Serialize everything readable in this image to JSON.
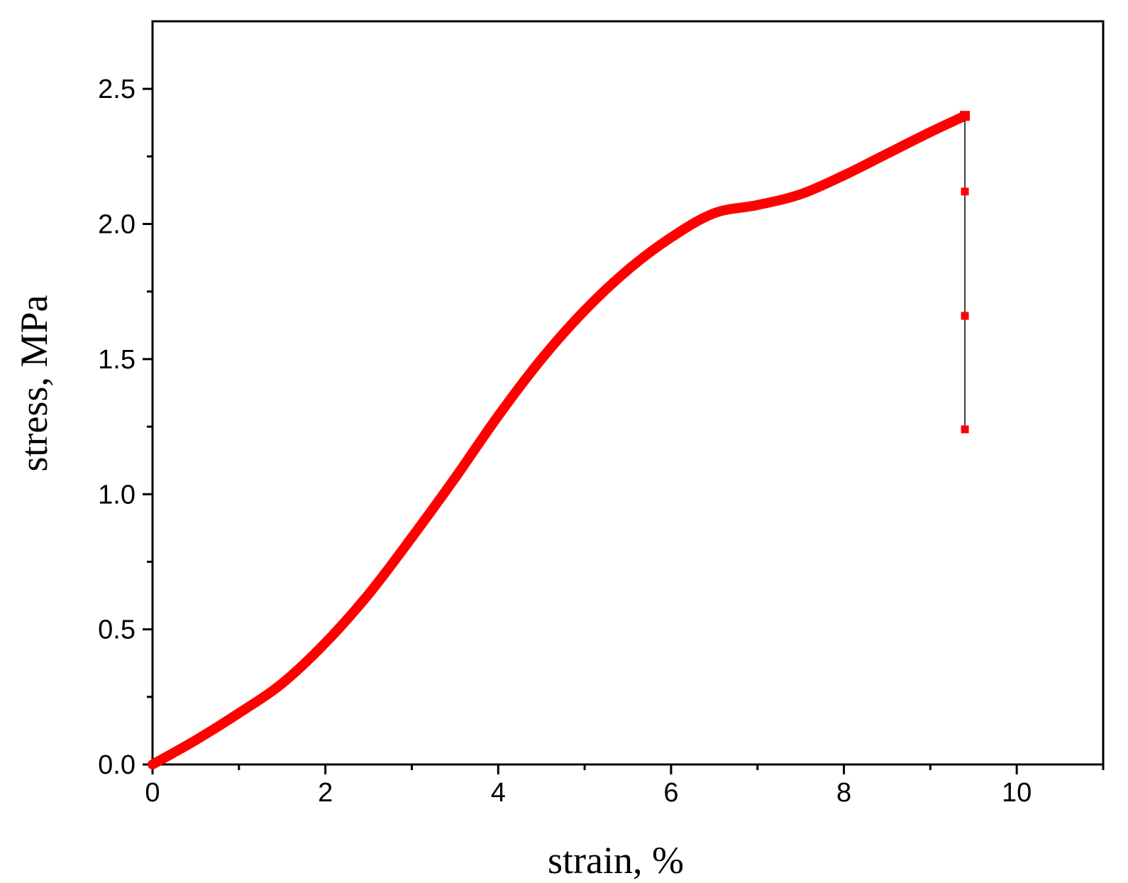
{
  "chart_data": {
    "type": "line",
    "title": "",
    "xlabel": "strain, %",
    "ylabel": "stress, MPa",
    "xlim": [
      0,
      11
    ],
    "ylim": [
      0,
      2.75
    ],
    "x_ticks": [
      0,
      2,
      4,
      6,
      8,
      10
    ],
    "x_tick_labels": [
      "0",
      "2",
      "4",
      "6",
      "8",
      "10"
    ],
    "x_minor_ticks": [
      1,
      3,
      5,
      7,
      9,
      11
    ],
    "y_ticks": [
      0.0,
      0.5,
      1.0,
      1.5,
      2.0,
      2.5
    ],
    "y_tick_labels": [
      "0.0",
      "0.5",
      "1.0",
      "1.5",
      "2.0",
      "2.5"
    ],
    "y_minor_ticks": [
      0.25,
      0.75,
      1.25,
      1.75,
      2.25
    ],
    "grid": false,
    "legend": "none",
    "colors": {
      "series": "#ff0000",
      "drop_line": "#000000",
      "axes": "#000000"
    },
    "series": [
      {
        "x": [
          0,
          0.5,
          1.0,
          1.5,
          2.0,
          2.5,
          3.0,
          3.5,
          4.0,
          4.5,
          5.0,
          5.5,
          6.0,
          6.5,
          7.0,
          7.5,
          8.0,
          8.5,
          9.0,
          9.4
        ],
        "y": [
          0.0,
          0.09,
          0.19,
          0.3,
          0.45,
          0.63,
          0.84,
          1.06,
          1.29,
          1.5,
          1.68,
          1.83,
          1.95,
          2.04,
          2.07,
          2.11,
          2.18,
          2.26,
          2.34,
          2.4
        ]
      }
    ],
    "drop_points": {
      "x": 9.4,
      "y": [
        2.4,
        2.12,
        1.66,
        1.24
      ]
    }
  }
}
